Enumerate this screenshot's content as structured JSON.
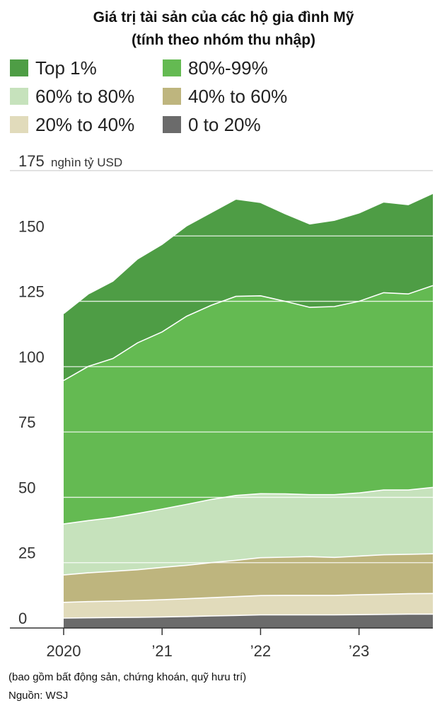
{
  "title_line1": "Giá trị tài sản của các hộ gia đình Mỹ",
  "title_line2": "(tính theo nhóm thu nhập)",
  "legend": [
    {
      "label": "Top 1%",
      "color": "#4e9d45"
    },
    {
      "label": "80%-99%",
      "color": "#64ba52"
    },
    {
      "label": "60% to 80%",
      "color": "#c6e2bc"
    },
    {
      "label": "40% to 60%",
      "color": "#beb57e"
    },
    {
      "label": "20% to 40%",
      "color": "#e1dbbb"
    },
    {
      "label": "0 to 20%",
      "color": "#6b6b6b"
    }
  ],
  "footnote": "(bao gồm bất động sản, chứng khoán, quỹ hưu trí)",
  "source": "Nguồn: WSJ",
  "chart_data": {
    "type": "area",
    "stacked": true,
    "y_unit_label": "nghìn tỷ USD",
    "ylim": [
      0,
      175
    ],
    "y_ticks": [
      0,
      25,
      50,
      75,
      100,
      125,
      150,
      175
    ],
    "xlim": [
      2020.0,
      2023.75
    ],
    "x_ticks": [
      {
        "value": 2020.0,
        "label": "2020"
      },
      {
        "value": 2021.0,
        "label": "’21"
      },
      {
        "value": 2022.0,
        "label": "’22"
      },
      {
        "value": 2023.0,
        "label": "’23"
      }
    ],
    "x": [
      2020.0,
      2020.25,
      2020.5,
      2020.75,
      2021.0,
      2021.25,
      2021.5,
      2021.75,
      2022.0,
      2022.25,
      2022.5,
      2022.75,
      2023.0,
      2023.25,
      2023.5,
      2023.75
    ],
    "series": [
      {
        "name": "0 to 20%",
        "color": "#6b6b6b",
        "values": [
          3.8,
          3.9,
          4.0,
          4.1,
          4.2,
          4.4,
          4.6,
          4.8,
          5.0,
          5.0,
          5.0,
          5.0,
          5.1,
          5.2,
          5.3,
          5.3
        ]
      },
      {
        "name": "20% to 40%",
        "color": "#e1dbbb",
        "values": [
          6.0,
          6.2,
          6.3,
          6.4,
          6.6,
          6.8,
          7.0,
          7.2,
          7.4,
          7.5,
          7.5,
          7.5,
          7.6,
          7.7,
          7.8,
          7.9
        ]
      },
      {
        "name": "40% to 60%",
        "color": "#beb57e",
        "values": [
          10.5,
          11.0,
          11.4,
          11.8,
          12.4,
          12.8,
          13.4,
          13.9,
          14.5,
          14.6,
          14.8,
          14.5,
          14.8,
          15.1,
          15.1,
          15.2
        ]
      },
      {
        "name": "60% to 80%",
        "color": "#c6e2bc",
        "values": [
          19.5,
          20.0,
          20.5,
          21.5,
          22.3,
          23.3,
          24.2,
          24.8,
          24.5,
          24.2,
          23.7,
          24.0,
          24.2,
          24.8,
          24.6,
          25.4
        ]
      },
      {
        "name": "80%-99%",
        "color": "#64ba52",
        "values": [
          54.9,
          59.0,
          60.9,
          65.3,
          67.8,
          72.0,
          74.3,
          76.2,
          75.7,
          73.7,
          71.7,
          72.0,
          73.3,
          75.5,
          75.0,
          77.2
        ]
      },
      {
        "name": "Top 1%",
        "color": "#4e9d45",
        "values": [
          25.6,
          27.7,
          29.6,
          32.1,
          33.5,
          34.6,
          35.5,
          37.2,
          35.7,
          33.5,
          31.9,
          33.0,
          33.8,
          34.7,
          34.2,
          35.3
        ]
      }
    ]
  }
}
